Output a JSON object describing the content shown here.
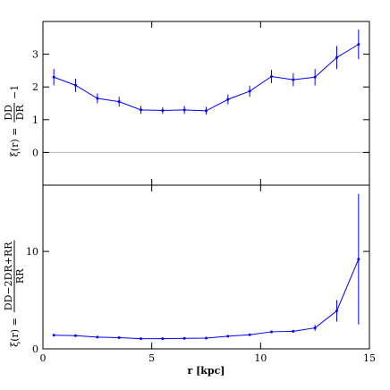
{
  "chart_data": [
    {
      "type": "line",
      "x": [
        0.5,
        1.5,
        2.5,
        3.5,
        4.5,
        5.5,
        6.5,
        7.5,
        8.5,
        9.5,
        10.5,
        11.5,
        12.5,
        13.5,
        14.5
      ],
      "series": [
        {
          "color": "#0000ff",
          "values": [
            2.3,
            2.05,
            1.65,
            1.55,
            1.3,
            1.28,
            1.3,
            1.27,
            1.62,
            1.87,
            2.32,
            2.22,
            2.3,
            2.9,
            3.3
          ],
          "errors": [
            0.25,
            0.2,
            0.15,
            0.15,
            0.12,
            0.1,
            0.12,
            0.12,
            0.15,
            0.17,
            0.2,
            0.2,
            0.25,
            0.35,
            0.45
          ]
        }
      ],
      "ylabel": {
        "lhs": "ξ(r) =",
        "numerator": "DD",
        "denominator": "DR",
        "rhs": "−1"
      },
      "xlim": [
        0,
        15
      ],
      "ylim": [
        -1,
        4
      ],
      "yticks": [
        0,
        1,
        2,
        3
      ],
      "hline": 0
    },
    {
      "type": "line",
      "x": [
        0.5,
        1.5,
        2.5,
        3.5,
        4.5,
        5.5,
        6.5,
        7.5,
        8.5,
        9.5,
        10.5,
        11.5,
        12.5,
        13.5,
        14.5
      ],
      "series": [
        {
          "color": "#0000ff",
          "values": [
            1.4,
            1.35,
            1.2,
            1.15,
            1.05,
            1.05,
            1.08,
            1.1,
            1.3,
            1.45,
            1.75,
            1.8,
            2.15,
            3.9,
            9.2
          ],
          "errors": [
            0.1,
            0.08,
            0.07,
            0.07,
            0.06,
            0.06,
            0.06,
            0.07,
            0.08,
            0.1,
            0.12,
            0.15,
            0.3,
            1.1,
            6.7
          ]
        }
      ],
      "ylabel": {
        "lhs": "ξ(r) =",
        "numerator": "DD−2DR+RR",
        "denominator": "RR"
      },
      "xlabel": "r [kpc]",
      "xlim": [
        0,
        15
      ],
      "xticks": [
        0,
        5,
        10,
        15
      ],
      "ylim": [
        0,
        16.8
      ],
      "yticks": [
        0,
        10
      ]
    }
  ]
}
